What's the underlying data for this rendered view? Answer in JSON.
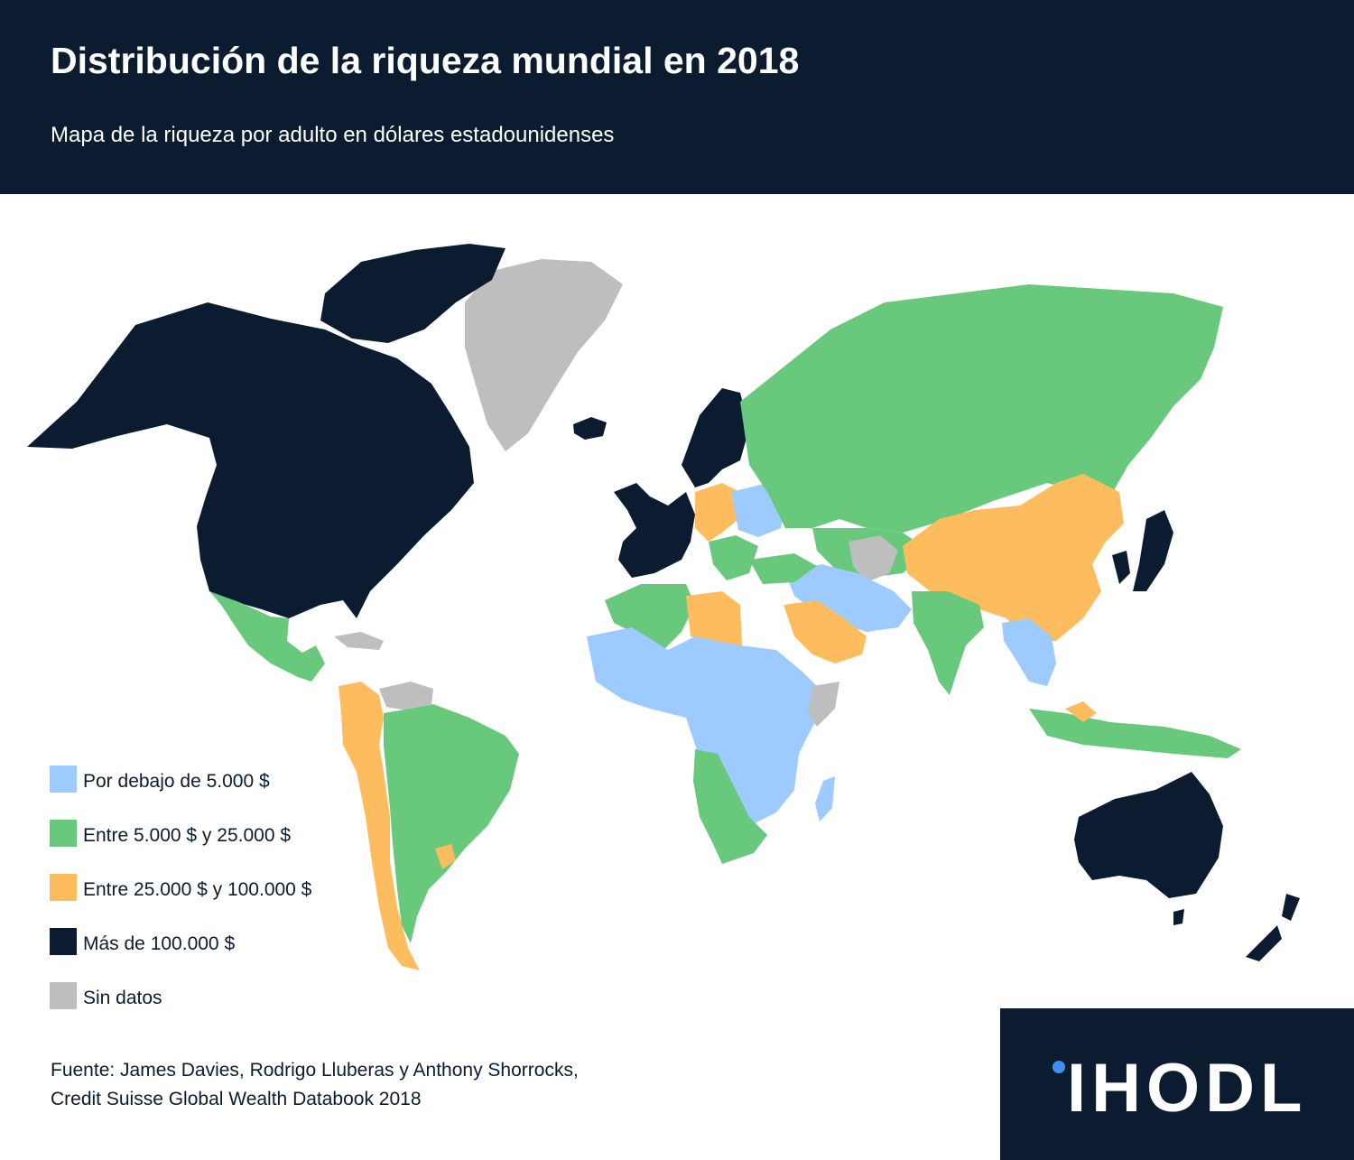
{
  "header": {
    "title": "Distribución de la riqueza mundial en 2018",
    "subtitle": "Mapa de la riqueza por adulto en dólares estadounidenses"
  },
  "legend": {
    "items": [
      {
        "label": "Por debajo de 5.000 $",
        "color": "#9ecbff"
      },
      {
        "label": "Entre 5.000 $ y 25.000 $",
        "color": "#68c97d"
      },
      {
        "label": "Entre 25.000 $ y 100.000 $",
        "color": "#fdbd5e"
      },
      {
        "label": "Más de 100.000 $",
        "color": "#0c1c30"
      },
      {
        "label": "Sin datos",
        "color": "#bebebe"
      }
    ]
  },
  "source": {
    "line1": "Fuente: James Davies, Rodrigo Lluberas y Anthony Shorrocks,",
    "line2": "Credit Suisse Global Wealth Databook 2018"
  },
  "logo": {
    "text": "IHODL",
    "dot_color": "#3f8ff0"
  },
  "map": {
    "type": "choropleth",
    "regions": [
      {
        "name": "North America",
        "category": "Más de 100.000 $"
      },
      {
        "name": "Greenland",
        "category": "Sin datos"
      },
      {
        "name": "Mexico & Central America",
        "category": "Entre 5.000 $ y 25.000 $"
      },
      {
        "name": "South America",
        "category": "Entre 5.000 $ y 25.000 $"
      },
      {
        "name": "Western Europe",
        "category": "Más de 100.000 $"
      },
      {
        "name": "Eastern Europe",
        "category": "Por debajo de 5.000 $"
      },
      {
        "name": "Russia",
        "category": "Entre 5.000 $ y 25.000 $"
      },
      {
        "name": "China",
        "category": "Entre 25.000 $ y 100.000 $"
      },
      {
        "name": "Africa",
        "category": "Por debajo de 5.000 $"
      },
      {
        "name": "Southern Africa",
        "category": "Entre 5.000 $ y 25.000 $"
      },
      {
        "name": "Saudi Arabia",
        "category": "Entre 25.000 $ y 100.000 $"
      },
      {
        "name": "India",
        "category": "Entre 5.000 $ y 25.000 $"
      },
      {
        "name": "Japan",
        "category": "Más de 100.000 $"
      },
      {
        "name": "Australia",
        "category": "Más de 100.000 $"
      },
      {
        "name": "New Zealand",
        "category": "Más de 100.000 $"
      }
    ]
  }
}
